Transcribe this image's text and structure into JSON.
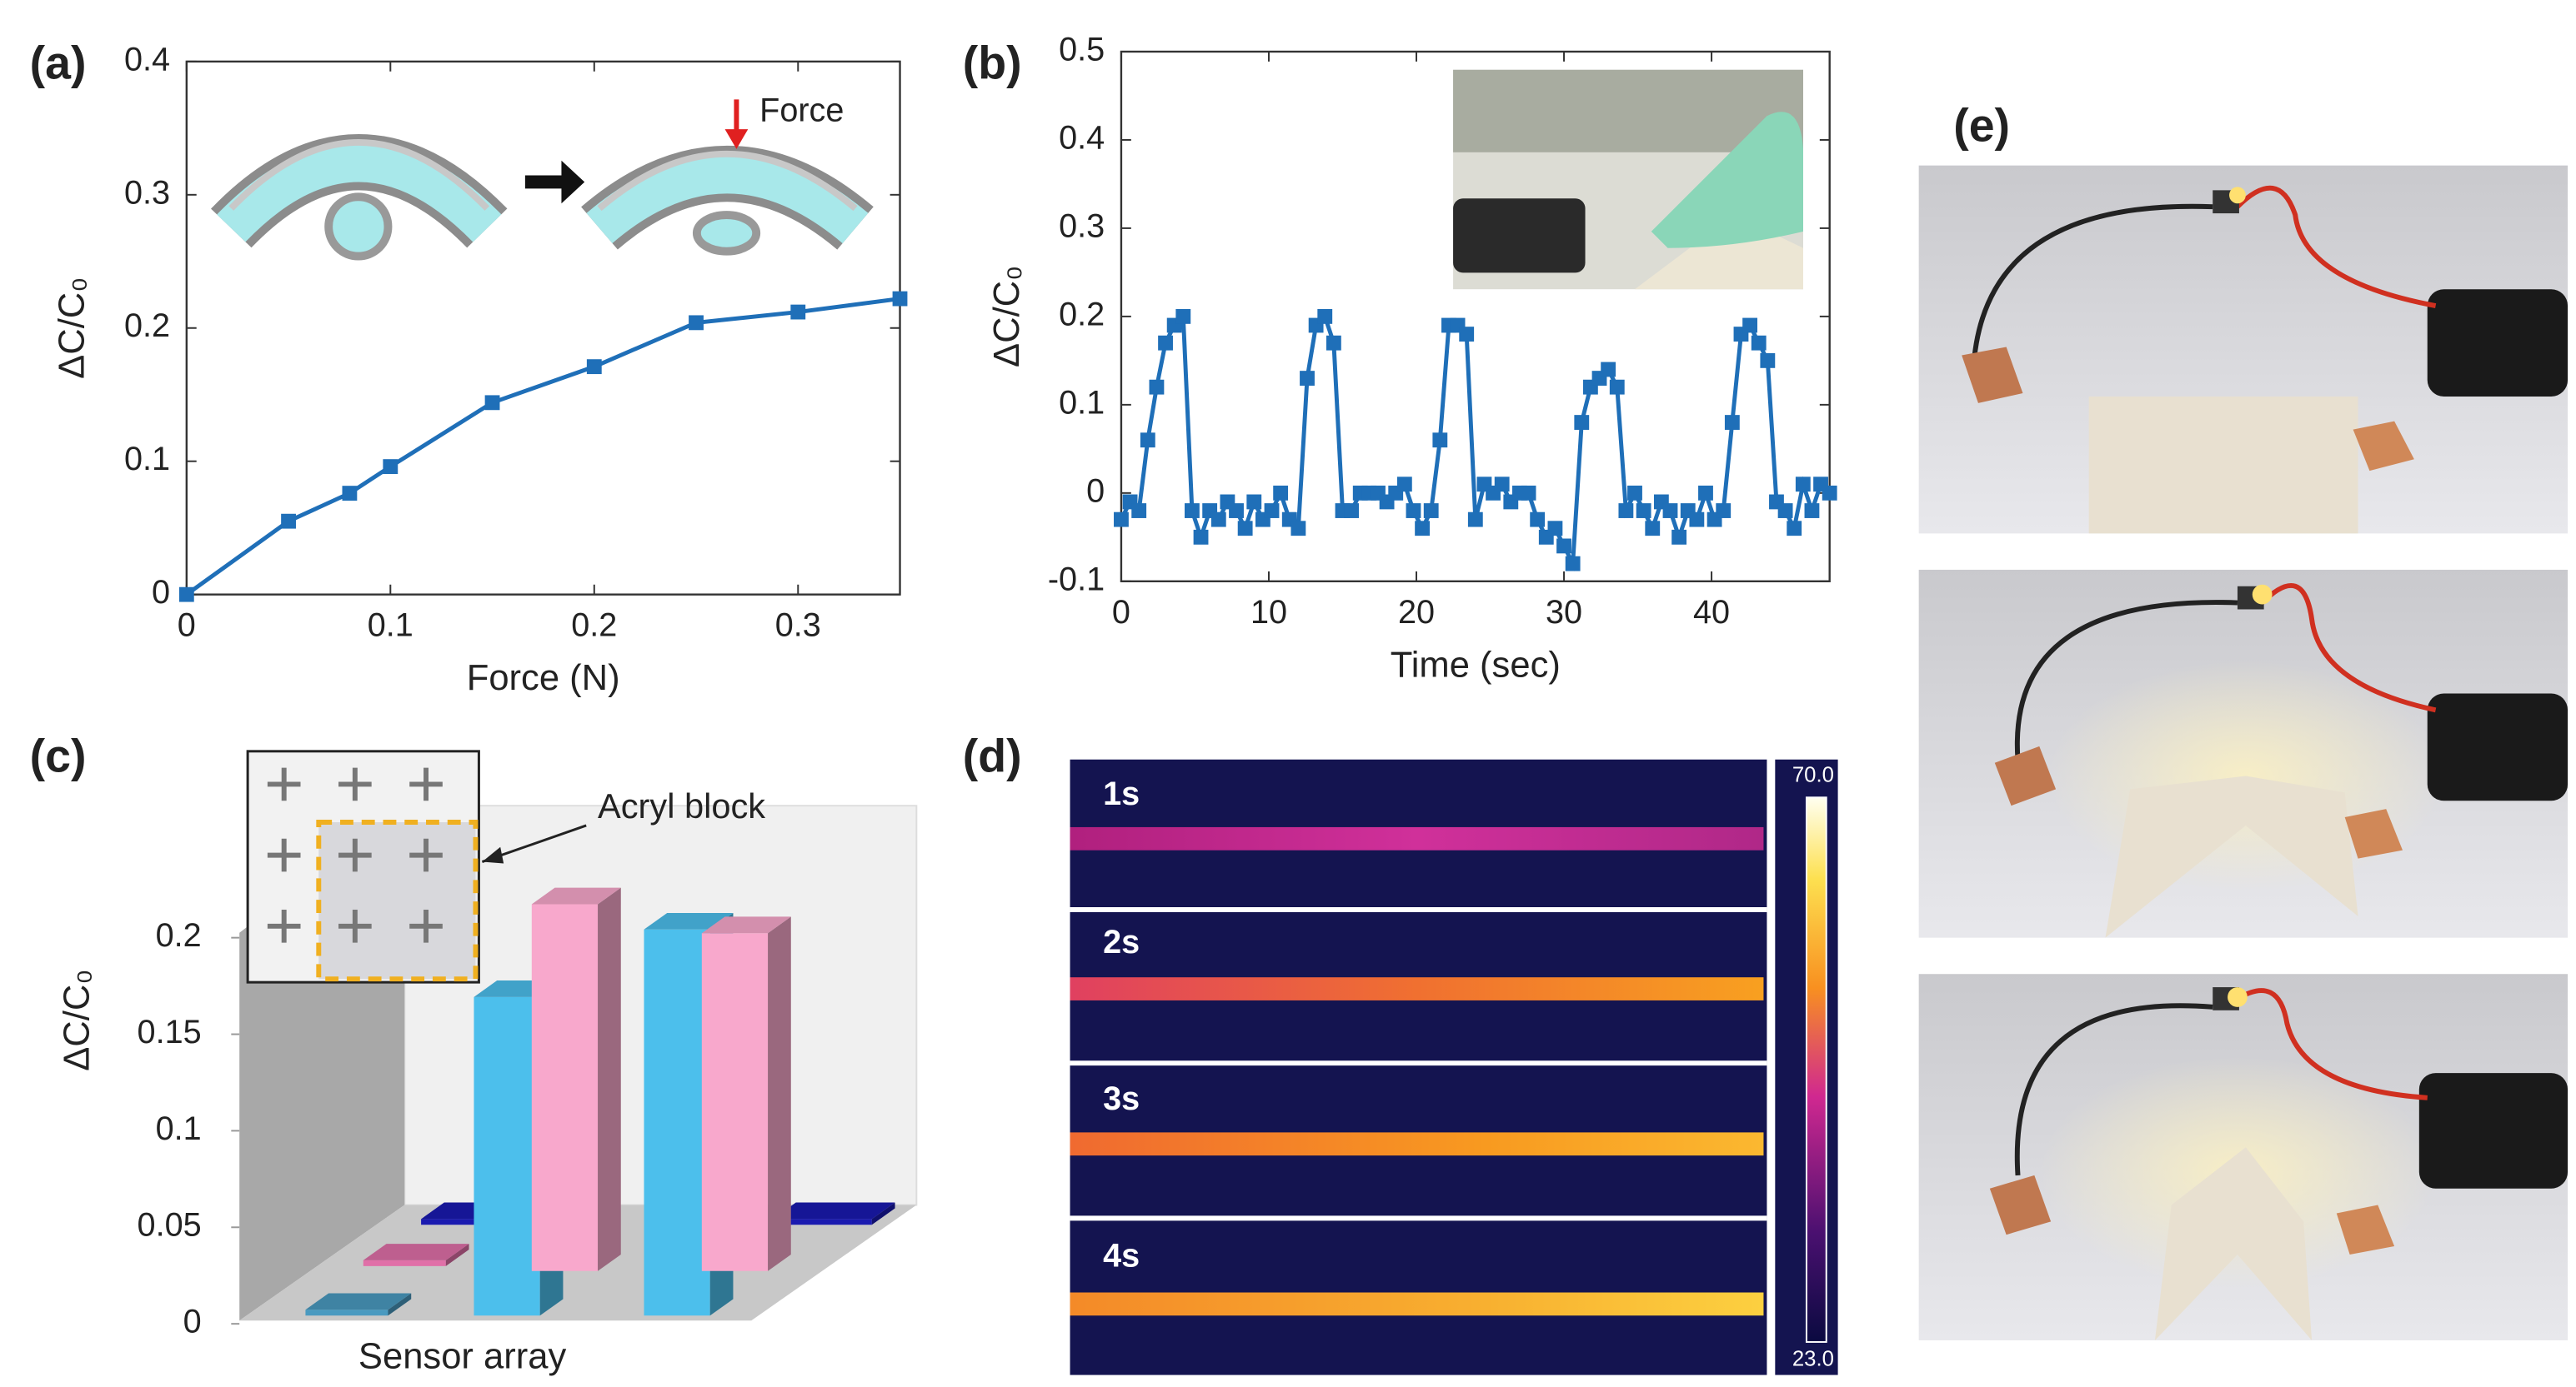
{
  "panel_labels": [
    "(a)",
    "(b)",
    "(c)",
    "(d)",
    "(e)"
  ],
  "chart_data": [
    {
      "type": "line",
      "x_label": "Force (N)",
      "y_label": "ΔC/C₀",
      "annotation": "Force",
      "x": [
        0,
        0.05,
        0.08,
        0.1,
        0.15,
        0.2,
        0.25,
        0.3,
        0.35
      ],
      "series": [
        {
          "color": "#1f6fb8",
          "values": [
            0,
            0.055,
            0.076,
            0.096,
            0.144,
            0.171,
            0.204,
            0.212,
            0.222
          ]
        }
      ],
      "xlim": [
        0,
        0.35
      ],
      "ylim": [
        0,
        0.4
      ],
      "xticks": [
        0,
        0.1,
        0.2,
        0.3
      ],
      "yticks": [
        0,
        0.1,
        0.2,
        0.3,
        0.4
      ]
    },
    {
      "type": "line",
      "x_label": "Time (sec)",
      "y_label": "ΔC/C₀",
      "x": [
        0,
        0.6,
        1.2,
        1.8,
        2.4,
        3,
        3.6,
        4.2,
        4.8,
        5.4,
        6,
        6.6,
        7.2,
        7.8,
        8.4,
        9,
        9.6,
        10.2,
        10.8,
        11.4,
        12,
        12.6,
        13.2,
        13.8,
        14.4,
        15,
        15.6,
        16.2,
        16.8,
        17.4,
        18,
        18.6,
        19.2,
        19.8,
        20.4,
        21,
        21.6,
        22.2,
        22.8,
        23.4,
        24,
        24.6,
        25.2,
        25.8,
        26.4,
        27,
        27.6,
        28.2,
        28.8,
        29.4,
        30,
        30.6,
        31.2,
        31.8,
        32.4,
        33,
        33.6,
        34.2,
        34.8,
        35.4,
        36,
        36.6,
        37.2,
        37.8,
        38.4,
        39,
        39.6,
        40.2,
        40.8,
        41.4,
        42,
        42.6,
        43.2,
        43.8,
        44.4,
        45,
        45.6,
        46.2,
        46.8,
        47.4,
        48
      ],
      "series": [
        {
          "color": "#1f6fb8",
          "values": [
            -0.03,
            -0.01,
            -0.02,
            0.06,
            0.12,
            0.17,
            0.19,
            0.2,
            -0.02,
            -0.05,
            -0.02,
            -0.03,
            -0.01,
            -0.02,
            -0.04,
            -0.01,
            -0.03,
            -0.02,
            0,
            -0.03,
            -0.04,
            0.13,
            0.19,
            0.2,
            0.17,
            -0.02,
            -0.02,
            0,
            0,
            0,
            -0.01,
            0,
            0.01,
            -0.02,
            -0.04,
            -0.02,
            0.06,
            0.19,
            0.19,
            0.18,
            -0.03,
            0.01,
            0,
            0.01,
            -0.01,
            0,
            0,
            -0.03,
            -0.05,
            -0.04,
            -0.06,
            -0.08,
            0.08,
            0.12,
            0.13,
            0.14,
            0.12,
            -0.02,
            0,
            -0.02,
            -0.04,
            -0.01,
            -0.02,
            -0.05,
            -0.02,
            -0.03,
            0,
            -0.03,
            -0.02,
            0.08,
            0.18,
            0.19,
            0.17,
            0.15,
            -0.01,
            -0.02,
            -0.04,
            0.01,
            -0.02,
            0.01,
            0
          ]
        }
      ],
      "xlim": [
        0,
        48
      ],
      "ylim": [
        -0.1,
        0.5
      ],
      "xticks": [
        0,
        10,
        20,
        30,
        40
      ],
      "yticks": [
        -0.1,
        0,
        0.1,
        0.2,
        0.3,
        0.4,
        0.5
      ]
    },
    {
      "type": "bar3d",
      "x_label": "Sensor array",
      "y_label": "ΔC/C₀",
      "annotation": "Acryl block",
      "values": [
        0.003,
        0.003,
        0.003,
        0.003,
        0.165,
        0.19,
        0.2,
        0.175
      ],
      "colors": [
        "#1a1ab0",
        "#1a1ab0",
        "#4a9ac0",
        "#e070a8",
        "#4cbfec",
        "#f8a8cc",
        "#4cbfec",
        "#f8a8cc"
      ],
      "ylim": [
        0,
        0.2
      ],
      "yticks": [
        0,
        0.05,
        0.1,
        0.15,
        0.2
      ]
    }
  ],
  "thermal": {
    "frames": [
      "1s",
      "2s",
      "3s",
      "4s"
    ],
    "colorbar_max": "70.0",
    "colorbar_min": "23.0"
  }
}
